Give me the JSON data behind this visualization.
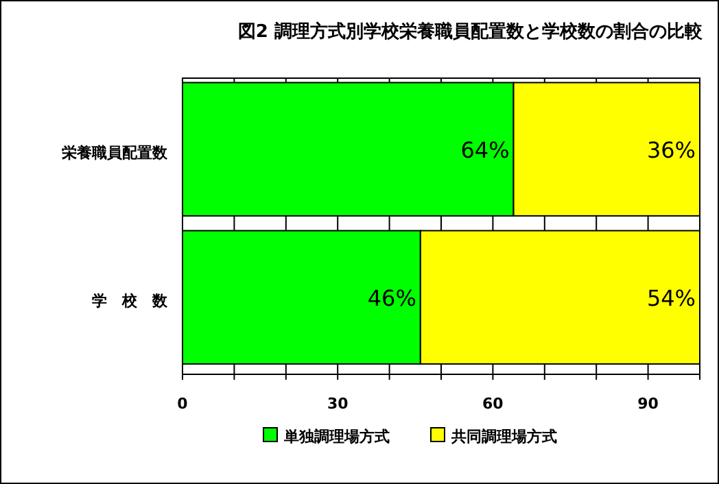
{
  "chart_data": {
    "type": "bar",
    "orientation": "horizontal",
    "stacked": true,
    "title": "図2 調理方式別学校栄養職員配置数と学校数の割合の比較",
    "categories": [
      "栄養職員配置数",
      "学　校　数"
    ],
    "series": [
      {
        "name": "単独調理場方式",
        "color": "#00ff00",
        "values": [
          64,
          46
        ],
        "value_labels": [
          "64%",
          "46%"
        ]
      },
      {
        "name": "共同調理場方式",
        "color": "#ffff00",
        "values": [
          36,
          54
        ],
        "value_labels": [
          "36%",
          "54%"
        ]
      }
    ],
    "xlim": [
      0,
      100
    ],
    "xticks": [
      0,
      {
        "value": 10,
        "label": null
      },
      {
        "value": 20,
        "label": null
      },
      30,
      {
        "value": 40,
        "label": null
      },
      {
        "value": 50,
        "label": null
      },
      60,
      {
        "value": 70,
        "label": null
      },
      {
        "value": 80,
        "label": null
      },
      90,
      {
        "value": 100,
        "label": null
      }
    ],
    "grid": "x",
    "legend": "bottom"
  }
}
